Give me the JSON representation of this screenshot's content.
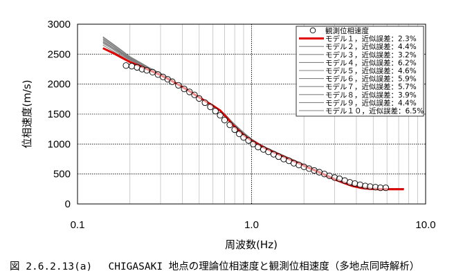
{
  "chart_data": {
    "type": "line",
    "xscale": "log",
    "xlim": [
      0.1,
      10.0
    ],
    "ylim": [
      0,
      3000
    ],
    "grid": true,
    "legend_placement": "top-right",
    "xlabel": "周波数(Hz)",
    "ylabel": "位相速度(m/s)",
    "x_ticks": [
      "0.1",
      "1.0",
      "10.0"
    ],
    "y_ticks": [
      "0",
      "500",
      "1000",
      "1500",
      "2000",
      "2500",
      "3000"
    ],
    "observed": {
      "name": "観測位相速度",
      "x": [
        0.19,
        0.205,
        0.22,
        0.235,
        0.25,
        0.27,
        0.29,
        0.31,
        0.33,
        0.35,
        0.38,
        0.41,
        0.44,
        0.47,
        0.5,
        0.54,
        0.58,
        0.62,
        0.66,
        0.7,
        0.75,
        0.8,
        0.85,
        0.9,
        0.96,
        1.02,
        1.09,
        1.17,
        1.25,
        1.34,
        1.43,
        1.53,
        1.64,
        1.75,
        1.87,
        2.0,
        2.14,
        2.29,
        2.45,
        2.62,
        2.8,
        3.0,
        3.2,
        3.43,
        3.67,
        3.92,
        4.2,
        4.5,
        4.8,
        5.15,
        5.5,
        5.9
      ],
      "y": [
        2310,
        2300,
        2280,
        2250,
        2230,
        2200,
        2160,
        2120,
        2080,
        2040,
        1980,
        1920,
        1870,
        1820,
        1760,
        1690,
        1620,
        1550,
        1480,
        1400,
        1320,
        1240,
        1170,
        1110,
        1060,
        1000,
        950,
        910,
        870,
        830,
        790,
        750,
        720,
        680,
        650,
        620,
        590,
        560,
        530,
        500,
        470,
        440,
        420,
        390,
        360,
        340,
        320,
        300,
        290,
        280,
        270,
        270
      ]
    },
    "model_curves": {
      "x": [
        0.14,
        0.16,
        0.18,
        0.2,
        0.23,
        0.26,
        0.3,
        0.34,
        0.38,
        0.43,
        0.48,
        0.54,
        0.6,
        0.66,
        0.72,
        0.78,
        0.85,
        0.92,
        1.0,
        1.1,
        1.2,
        1.35,
        1.5,
        1.7,
        1.9,
        2.1,
        2.4,
        2.7,
        3.0,
        3.4,
        3.8,
        4.3,
        4.8,
        5.4,
        6.0,
        6.8,
        7.5
      ]
    },
    "series": [
      {
        "name": "モデル１，近似誤差：2.3%",
        "color": "#e00000",
        "values": [
          2600,
          2520,
          2440,
          2370,
          2300,
          2230,
          2150,
          2070,
          1990,
          1900,
          1810,
          1720,
          1640,
          1560,
          1440,
          1320,
          1220,
          1130,
          1060,
          990,
          930,
          860,
          800,
          730,
          670,
          610,
          540,
          470,
          410,
          350,
          300,
          265,
          250,
          245,
          245,
          245,
          245
        ]
      },
      {
        "name": "モデル２，近似誤差：4.4%",
        "color": "#808080",
        "values": [
          2700,
          2600,
          2500,
          2410,
          2320,
          2240,
          2160,
          2080,
          2000,
          1910,
          1820,
          1730,
          1650,
          1560,
          1450,
          1340,
          1240,
          1150,
          1070,
          1000,
          940,
          870,
          810,
          740,
          680,
          620,
          550,
          480,
          420,
          360,
          310,
          275,
          260,
          255,
          255,
          255,
          255
        ]
      },
      {
        "name": "モデル３，近似誤差：3.2%",
        "color": "#808080",
        "values": [
          2650,
          2550,
          2460,
          2380,
          2310,
          2230,
          2150,
          2070,
          1990,
          1900,
          1810,
          1720,
          1640,
          1550,
          1450,
          1330,
          1230,
          1140,
          1060,
          995,
          935,
          865,
          805,
          735,
          675,
          615,
          545,
          475,
          415,
          355,
          305,
          270,
          255,
          250,
          250,
          250,
          250
        ]
      },
      {
        "name": "モデル４，近似誤差：6.2%",
        "color": "#808080",
        "values": [
          2780,
          2660,
          2550,
          2450,
          2350,
          2260,
          2170,
          2080,
          1990,
          1900,
          1810,
          1720,
          1640,
          1560,
          1460,
          1350,
          1250,
          1160,
          1080,
          1010,
          945,
          875,
          815,
          745,
          685,
          625,
          555,
          485,
          425,
          365,
          315,
          280,
          265,
          260,
          260,
          260,
          260
        ]
      },
      {
        "name": "モデル５，近似誤差：4.6%",
        "color": "#808080",
        "values": [
          2720,
          2610,
          2510,
          2420,
          2330,
          2250,
          2160,
          2080,
          2000,
          1910,
          1820,
          1730,
          1650,
          1560,
          1450,
          1340,
          1240,
          1150,
          1070,
          1000,
          940,
          870,
          810,
          740,
          680,
          620,
          550,
          480,
          420,
          360,
          310,
          275,
          260,
          255,
          255,
          255,
          255
        ]
      },
      {
        "name": "モデル６，近似誤差：5.9%",
        "color": "#808080",
        "values": [
          2760,
          2640,
          2530,
          2440,
          2340,
          2260,
          2170,
          2090,
          2000,
          1910,
          1820,
          1730,
          1650,
          1570,
          1460,
          1350,
          1250,
          1160,
          1080,
          1005,
          945,
          875,
          815,
          745,
          685,
          625,
          555,
          485,
          425,
          365,
          315,
          280,
          265,
          258,
          258,
          258,
          258
        ]
      },
      {
        "name": "モデル７，近似誤差：5.7%",
        "color": "#808080",
        "values": [
          2740,
          2630,
          2520,
          2430,
          2340,
          2250,
          2170,
          2080,
          2000,
          1910,
          1820,
          1730,
          1650,
          1560,
          1460,
          1350,
          1250,
          1160,
          1075,
          1005,
          940,
          870,
          810,
          740,
          680,
          620,
          550,
          480,
          420,
          360,
          310,
          275,
          260,
          255,
          255,
          255,
          255
        ]
      },
      {
        "name": "モデル８，近似誤差：3.9%",
        "color": "#808080",
        "values": [
          2680,
          2580,
          2480,
          2400,
          2320,
          2240,
          2160,
          2080,
          2000,
          1910,
          1820,
          1730,
          1640,
          1560,
          1450,
          1340,
          1240,
          1150,
          1070,
          1000,
          940,
          870,
          810,
          740,
          680,
          620,
          550,
          480,
          420,
          360,
          310,
          275,
          260,
          255,
          255,
          255,
          255
        ]
      },
      {
        "name": "モデル９，近似誤差：4.4%",
        "color": "#808080",
        "values": [
          2700,
          2600,
          2500,
          2410,
          2320,
          2240,
          2160,
          2080,
          2000,
          1910,
          1820,
          1730,
          1650,
          1560,
          1450,
          1340,
          1240,
          1150,
          1070,
          1000,
          940,
          870,
          810,
          740,
          680,
          620,
          550,
          480,
          420,
          360,
          310,
          275,
          260,
          255,
          255,
          255,
          255
        ]
      },
      {
        "name": "モデル１０，近似誤差：6.5%",
        "color": "#808080",
        "values": [
          2790,
          2670,
          2560,
          2460,
          2360,
          2270,
          2180,
          2090,
          2000,
          1910,
          1820,
          1730,
          1650,
          1570,
          1470,
          1360,
          1260,
          1170,
          1085,
          1010,
          950,
          880,
          820,
          750,
          690,
          630,
          560,
          490,
          430,
          370,
          320,
          285,
          268,
          260,
          260,
          260,
          260
        ]
      }
    ]
  },
  "caption": "図 2.6.2.13(a)　 CHIGASAKI 地点の理論位相速度と観測位相速度（多地点同時解析）"
}
